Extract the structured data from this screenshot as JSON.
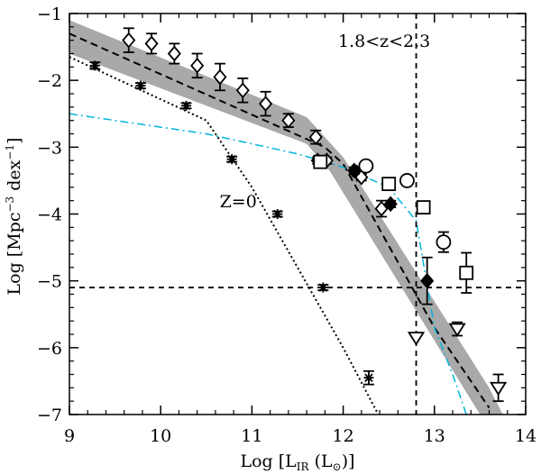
{
  "chart_data": {
    "type": "scatter",
    "title": "",
    "xlabel_parts": [
      "Log [L",
      "IR",
      " (L",
      "⊙",
      ")]"
    ],
    "ylabel_parts": [
      "Log [Mpc",
      "−3",
      " dex",
      "−1",
      "]"
    ],
    "xlim": [
      9,
      14
    ],
    "ylim": [
      -7,
      -1
    ],
    "xticks": [
      9,
      10,
      11,
      12,
      13,
      14
    ],
    "yticks": [
      -7,
      -6,
      -5,
      -4,
      -3,
      -2,
      -1
    ],
    "xtick_labels": [
      "9",
      "10",
      "11",
      "12",
      "13",
      "14"
    ],
    "ytick_labels": [
      "−7",
      "−6",
      "−5",
      "−4",
      "−3",
      "−2",
      "−1"
    ],
    "annotations": [
      {
        "text": "1.8<z<2.3",
        "x": 12.45,
        "y": -1.5
      },
      {
        "text": "Z=0",
        "x": 10.85,
        "y": -3.9
      }
    ],
    "reference_lines": {
      "vertical_x": 12.8,
      "horizontal_y": -5.1
    },
    "band": {
      "upper": [
        [
          9,
          -1.1
        ],
        [
          11.6,
          -2.55
        ],
        [
          12.0,
          -3.15
        ],
        [
          13.6,
          -6.6
        ],
        [
          13.75,
          -7.0
        ]
      ],
      "lower": [
        [
          9,
          -1.6
        ],
        [
          11.6,
          -2.95
        ],
        [
          11.85,
          -3.35
        ],
        [
          13.5,
          -7.0
        ]
      ]
    },
    "series": [
      {
        "style": "dashed-line",
        "color": "#000000",
        "x": [
          9,
          11.8,
          12.0,
          13.0,
          13.6
        ],
        "y": [
          -1.3,
          -3.0,
          -3.25,
          -5.7,
          -6.9
        ]
      },
      {
        "style": "dotted-line",
        "color": "#000000",
        "x": [
          9,
          10.5,
          11.0,
          11.5,
          12.0,
          12.5
        ],
        "y": [
          -1.65,
          -2.6,
          -3.6,
          -4.8,
          -6.0,
          -7.3
        ]
      },
      {
        "style": "dash-dot-line",
        "color": "#00b4dc",
        "x": [
          9,
          10.5,
          11.0,
          11.5,
          12.0,
          12.5,
          12.8,
          13.0,
          13.2,
          13.35
        ],
        "y": [
          -2.5,
          -2.8,
          -2.95,
          -3.1,
          -3.3,
          -3.6,
          -4.1,
          -5.7,
          -6.4,
          -7.0
        ]
      },
      {
        "marker": "diamond-open",
        "points": [
          [
            9.65,
            -1.4,
            0.18
          ],
          [
            9.9,
            -1.45,
            0.15
          ],
          [
            10.15,
            -1.6,
            0.15
          ],
          [
            10.4,
            -1.78,
            0.18
          ],
          [
            10.65,
            -1.95,
            0.2
          ],
          [
            10.9,
            -2.15,
            0.18
          ],
          [
            11.15,
            -2.35,
            0.18
          ],
          [
            11.4,
            -2.6,
            0.1
          ],
          [
            11.7,
            -2.85,
            0.1
          ],
          [
            11.82,
            -3.2,
            0.05
          ],
          [
            12.15,
            -3.38,
            0.05
          ],
          [
            12.2,
            -3.45,
            0.05
          ],
          [
            12.42,
            -3.92,
            0.12
          ]
        ]
      },
      {
        "marker": "diamond-filled",
        "points": [
          [
            11.72,
            -3.2,
            0.05
          ],
          [
            12.12,
            -3.35,
            0.05
          ],
          [
            12.52,
            -3.85,
            0.05
          ],
          [
            12.92,
            -5.0,
            0.35
          ]
        ]
      },
      {
        "marker": "star",
        "points": [
          [
            9.28,
            -1.78,
            0.05
          ],
          [
            9.78,
            -2.08,
            0.04
          ],
          [
            10.28,
            -2.38,
            0.04
          ],
          [
            10.78,
            -3.18,
            0.04
          ],
          [
            11.28,
            -4.0,
            0.04
          ],
          [
            11.78,
            -5.1,
            0.04
          ],
          [
            12.28,
            -6.45,
            0.1
          ]
        ]
      },
      {
        "marker": "square-open",
        "points": [
          [
            11.75,
            -3.22,
            0.05
          ],
          [
            12.5,
            -3.55,
            0.05
          ],
          [
            12.88,
            -3.9,
            0.08
          ],
          [
            13.35,
            -4.88,
            0.3
          ]
        ]
      },
      {
        "marker": "circle-open",
        "points": [
          [
            12.25,
            -3.28,
            0.05
          ],
          [
            12.7,
            -3.5,
            0.05
          ],
          [
            13.1,
            -4.42,
            0.15
          ]
        ]
      },
      {
        "marker": "triangle-down-open",
        "points": [
          [
            12.8,
            -5.85,
            0.0
          ],
          [
            13.25,
            -5.72,
            0.1
          ],
          [
            13.7,
            -6.6,
            0.2
          ]
        ]
      }
    ]
  }
}
